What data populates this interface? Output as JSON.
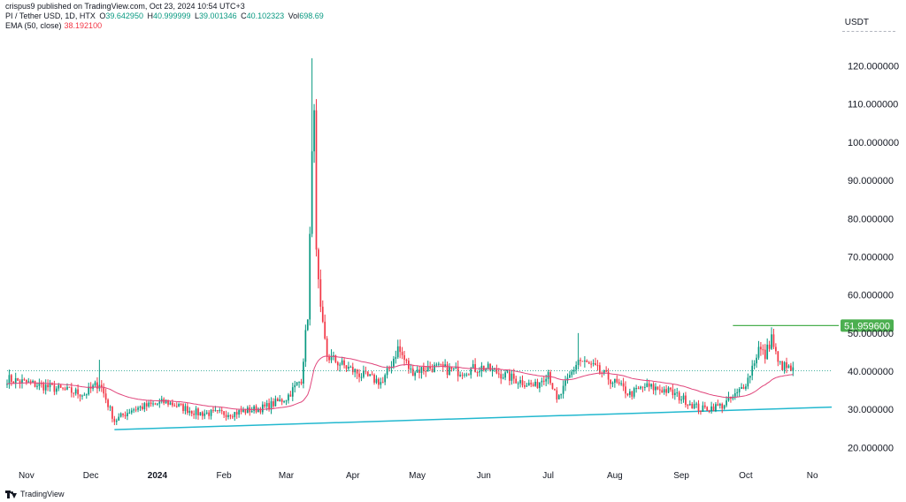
{
  "header": {
    "published": "crispus9 published on TradingView.com, Oct 23, 2024 10:54 UTC+3",
    "symbol": "PI / Tether USD, 1D, HTX",
    "open_label": "O",
    "open": "39.642950",
    "high_label": "H",
    "high": "40.999999",
    "low_label": "L",
    "low": "39.001346",
    "close_label": "C",
    "close": "40.102323",
    "vol_label": "Vol",
    "vol": "698.69",
    "ema_label": "EMA (50, close)",
    "ema": "38.192100"
  },
  "currency": "USDT",
  "footer": {
    "brand": "TradingView"
  },
  "colors": {
    "up": "#089981",
    "down": "#f23645",
    "ema": "#e0457b",
    "trendline": "#22b8cf",
    "resistance": "#4caf50",
    "text": "#131722"
  },
  "chart_data": {
    "type": "candlestick",
    "title": "PI / Tether USD, 1D, HTX",
    "xlabel": "",
    "ylabel": "USDT",
    "ylim": [
      15,
      128
    ],
    "y_ticks": [
      "120.000000",
      "110.000000",
      "100.000000",
      "90.000000",
      "80.000000",
      "70.000000",
      "60.000000",
      "50.000000",
      "40.000000",
      "30.000000",
      "20.000000"
    ],
    "y_tick_values": [
      120,
      110,
      100,
      90,
      80,
      70,
      60,
      50,
      40,
      30,
      20
    ],
    "x_ticks": [
      "Nov",
      "Dec",
      "2024",
      "Feb",
      "Mar",
      "Apr",
      "May",
      "Jun",
      "Jul",
      "Aug",
      "Sep",
      "Oct",
      "No"
    ],
    "x_tick_dates": [
      "2023-11-01",
      "2023-12-01",
      "2024-01-01",
      "2024-02-01",
      "2024-03-01",
      "2024-04-01",
      "2024-05-01",
      "2024-06-01",
      "2024-07-01",
      "2024-08-01",
      "2024-09-01",
      "2024-10-01",
      "2024-11-01"
    ],
    "date_range": [
      "2023-10-23",
      "2024-10-23"
    ],
    "current_price": 40.102323,
    "resistance": {
      "label": "51.959600",
      "value": 51.9596,
      "from": "2024-09-25",
      "to": "2024-11-10"
    },
    "trendline": {
      "from": {
        "date": "2023-12-12",
        "value": 24.7
      },
      "to": {
        "date": "2024-11-10",
        "value": 30.6
      }
    },
    "ema_label": "EMA (50, close)",
    "keypoints": [
      [
        "2023-10-23",
        38
      ],
      [
        "2023-11-10",
        36
      ],
      [
        "2023-11-28",
        34
      ],
      [
        "2023-12-05",
        37
      ],
      [
        "2023-12-12",
        27
      ],
      [
        "2023-12-20",
        30
      ],
      [
        "2024-01-05",
        32
      ],
      [
        "2024-01-20",
        29
      ],
      [
        "2024-02-05",
        29
      ],
      [
        "2024-02-20",
        30.5
      ],
      [
        "2024-03-01",
        33
      ],
      [
        "2024-03-08",
        38
      ],
      [
        "2024-03-11",
        55
      ],
      [
        "2024-03-13",
        95
      ],
      [
        "2024-03-14",
        112
      ],
      [
        "2024-03-15",
        70
      ],
      [
        "2024-03-17",
        55
      ],
      [
        "2024-03-20",
        44
      ],
      [
        "2024-03-26",
        42
      ],
      [
        "2024-04-05",
        39
      ],
      [
        "2024-04-15",
        37
      ],
      [
        "2024-04-22",
        46
      ],
      [
        "2024-04-28",
        40
      ],
      [
        "2024-05-08",
        41
      ],
      [
        "2024-05-20",
        40
      ],
      [
        "2024-06-01",
        41
      ],
      [
        "2024-06-15",
        38
      ],
      [
        "2024-06-25",
        36
      ],
      [
        "2024-07-01",
        40
      ],
      [
        "2024-07-05",
        32
      ],
      [
        "2024-07-15",
        43
      ],
      [
        "2024-07-22",
        41
      ],
      [
        "2024-08-01",
        37
      ],
      [
        "2024-08-08",
        34
      ],
      [
        "2024-08-15",
        36
      ],
      [
        "2024-08-25",
        35
      ],
      [
        "2024-09-01",
        33
      ],
      [
        "2024-09-10",
        30
      ],
      [
        "2024-09-20",
        31
      ],
      [
        "2024-09-27",
        34
      ],
      [
        "2024-10-02",
        38
      ],
      [
        "2024-10-07",
        46
      ],
      [
        "2024-10-10",
        44
      ],
      [
        "2024-10-13",
        49
      ],
      [
        "2024-10-16",
        42
      ],
      [
        "2024-10-23",
        40
      ]
    ]
  }
}
